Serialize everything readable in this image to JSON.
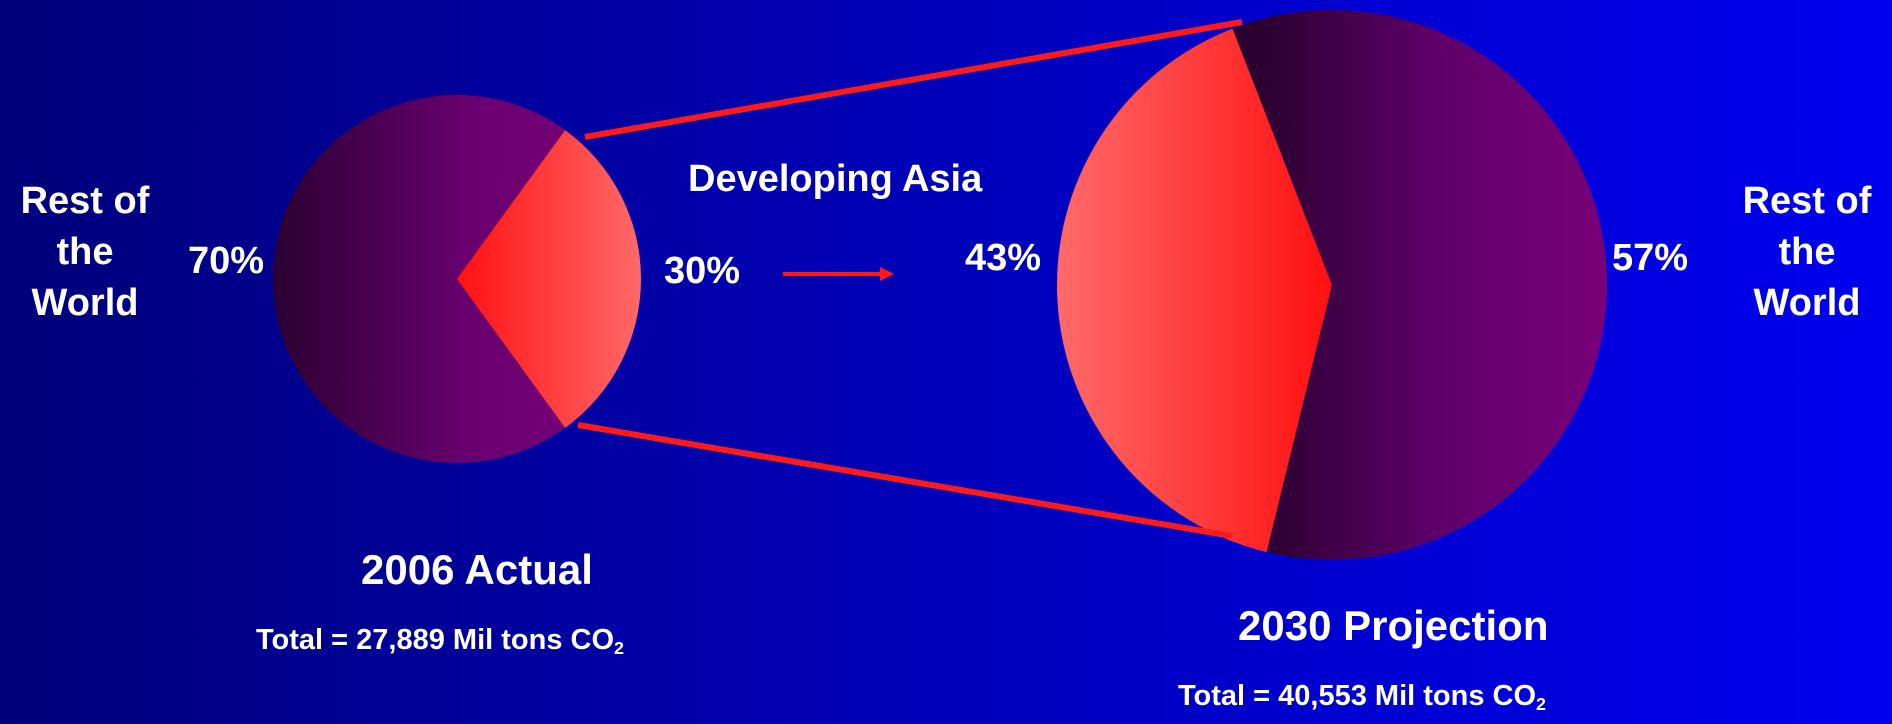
{
  "chart_data": [
    {
      "type": "pie",
      "title": "2006 Actual",
      "subtitle_prefix": "Total = 27,889 Mil tons CO",
      "subtitle_sub": "2",
      "slices": [
        {
          "name": "Developing Asia",
          "value": 30,
          "label": "30%",
          "color": "#ff2a2a"
        },
        {
          "name": "Rest of the World",
          "value": 70,
          "label": "70%",
          "color": "#6a0070"
        }
      ]
    },
    {
      "type": "pie",
      "title": "2030 Projection",
      "subtitle_prefix": "Total = 40,553 Mil tons CO",
      "subtitle_sub": "2",
      "slices": [
        {
          "name": "Developing Asia",
          "value": 43,
          "label": "43%",
          "color": "#ff2a2a"
        },
        {
          "name": "Rest of the World",
          "value": 57,
          "label": "57%",
          "color": "#6a0070"
        }
      ]
    }
  ],
  "labels": {
    "developing_asia": "Developing Asia",
    "rest_left": [
      "Rest of",
      "the",
      "World"
    ],
    "rest_right": [
      "Rest of",
      "the",
      "World"
    ]
  },
  "colors": {
    "background": "#0000b4",
    "connector": "#ff1a1a",
    "asia_slice": "#ff2a2a",
    "rest_slice": "#6a0070"
  }
}
